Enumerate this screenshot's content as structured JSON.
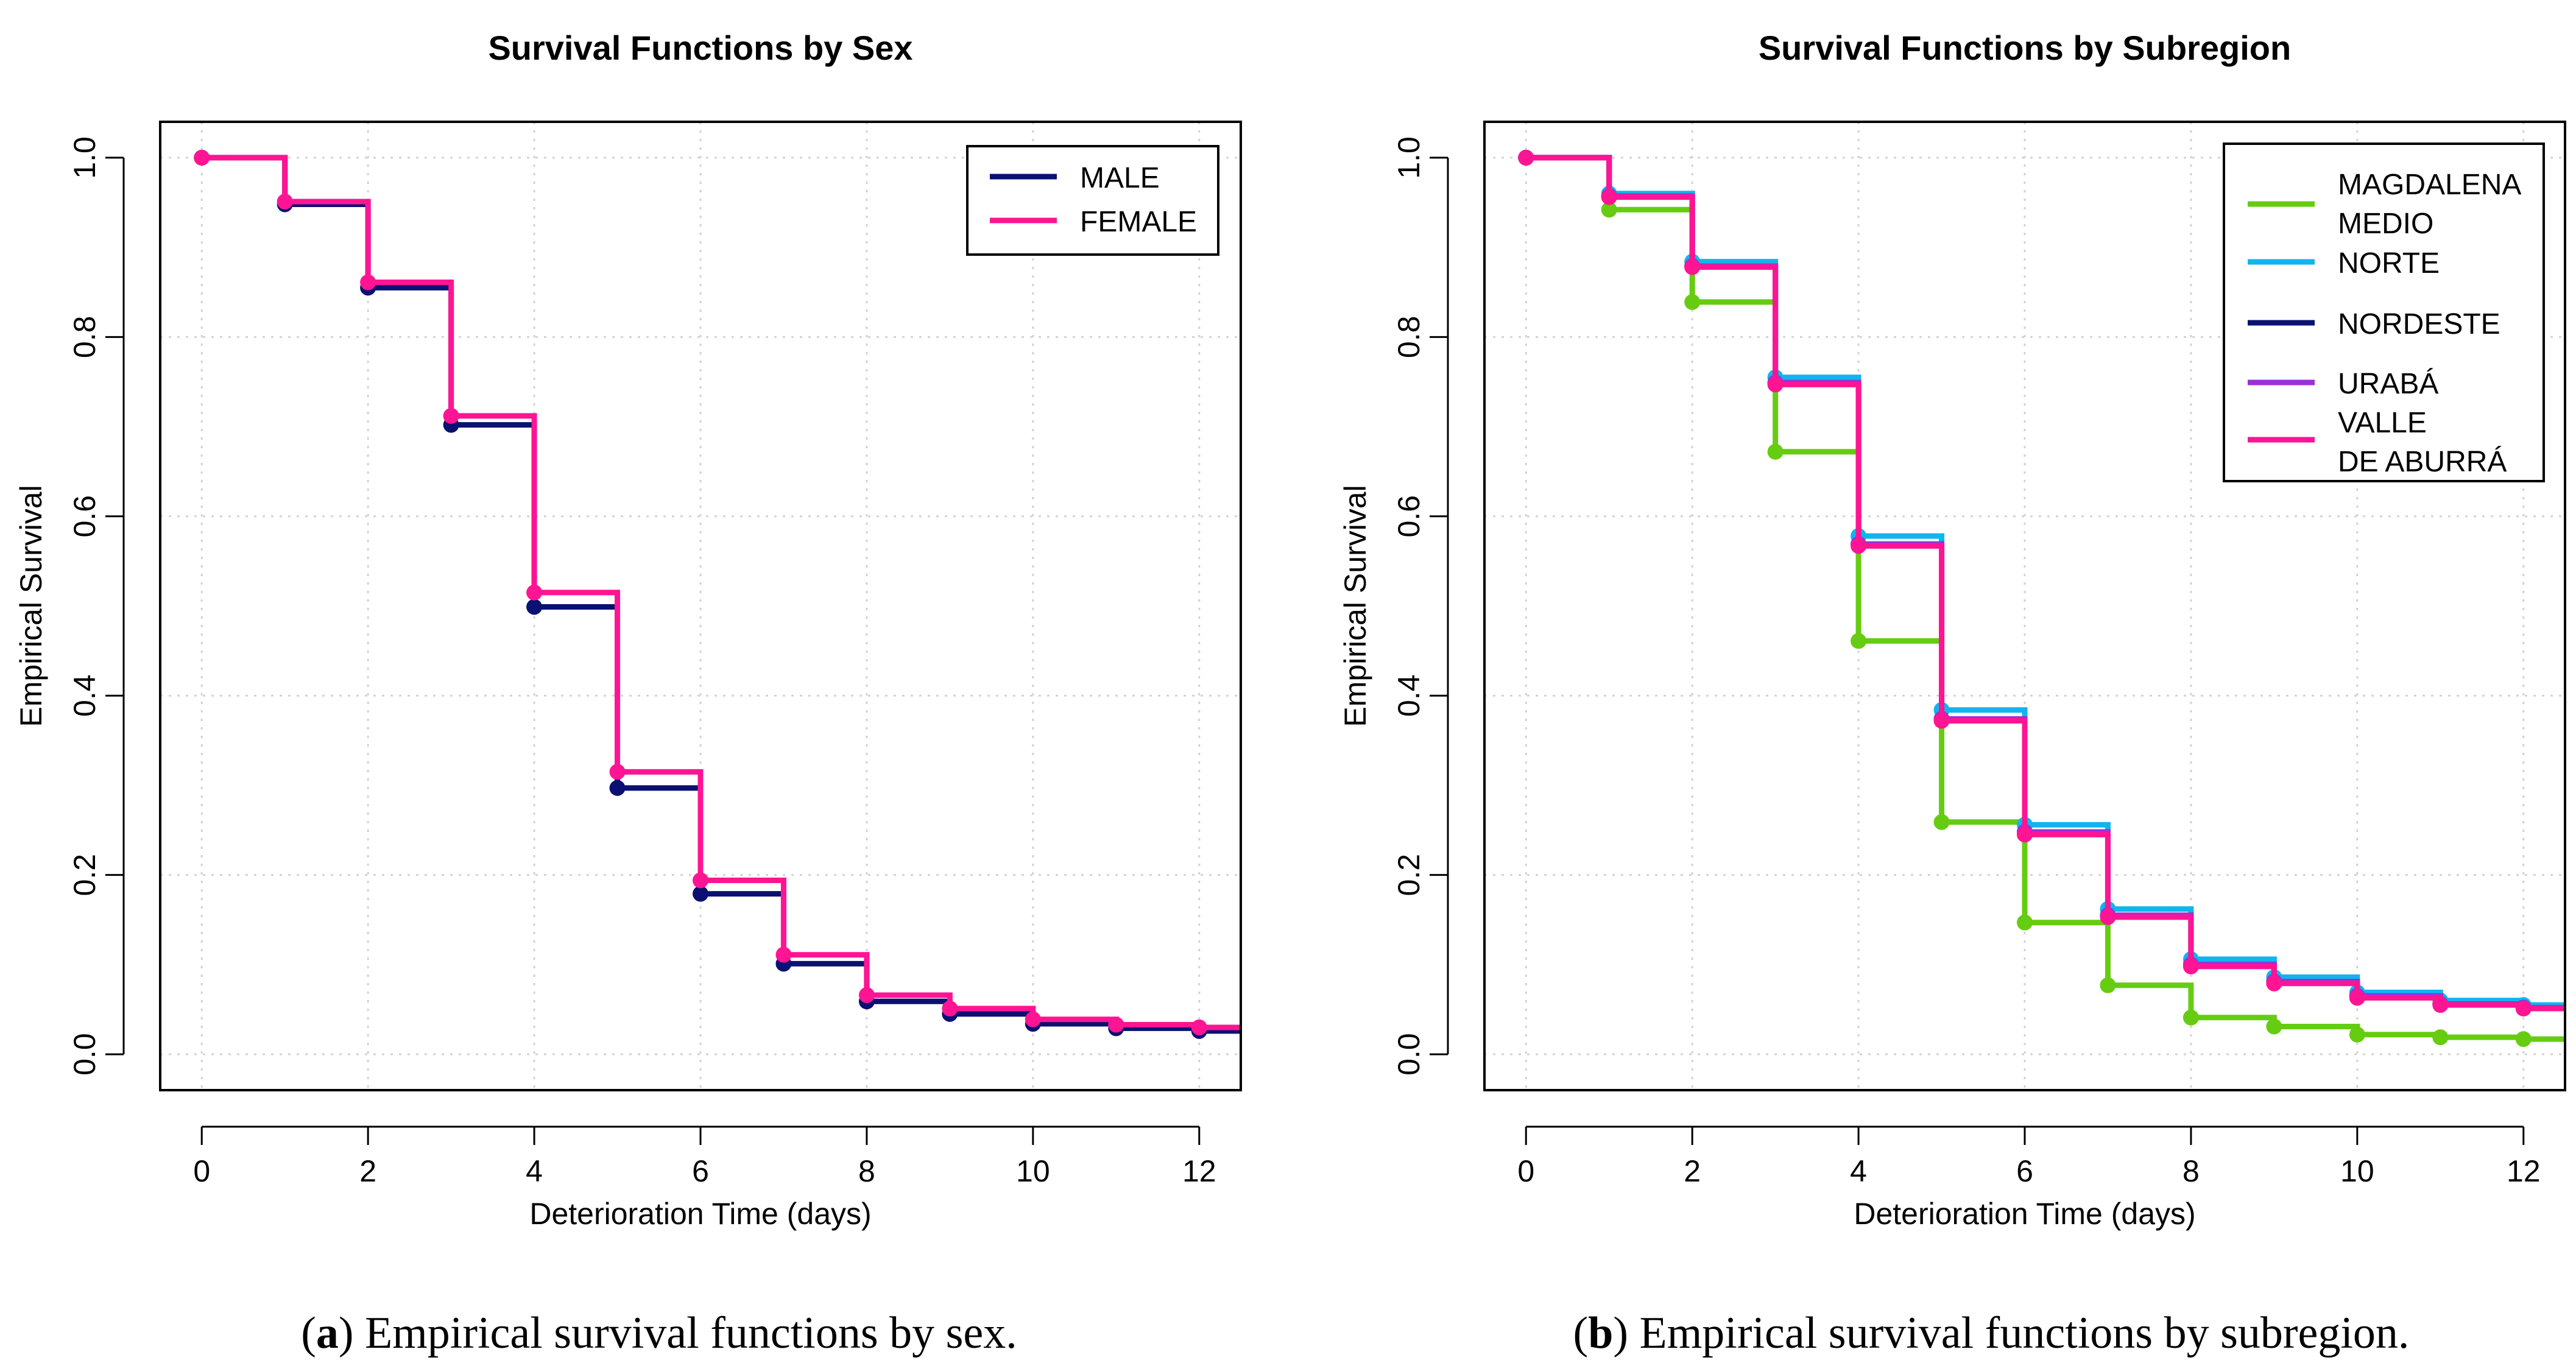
{
  "figure": {
    "captions": [
      {
        "letter": "a",
        "text": ") Empirical survival functions by sex."
      },
      {
        "letter": "b",
        "text": ") Empirical survival functions by subregion."
      }
    ]
  },
  "chart_data": [
    {
      "type": "line",
      "step": "post",
      "title": "Survival Functions by Sex",
      "xlabel": "Deterioration Time (days)",
      "ylabel": "Empirical Survival",
      "xlim": [
        -0.5,
        12.5
      ],
      "ylim": [
        -0.04,
        1.04
      ],
      "xticks": [
        0,
        2,
        4,
        6,
        8,
        10,
        12
      ],
      "xtick_labels": [
        "0",
        "2",
        "4",
        "6",
        "8",
        "10",
        "12"
      ],
      "yticks": [
        0.0,
        0.2,
        0.4,
        0.6,
        0.8,
        1.0
      ],
      "ytick_labels": [
        "0.0",
        "0.2",
        "0.4",
        "0.6",
        "0.8",
        "1.0"
      ],
      "grid": true,
      "legend_position": "top-right",
      "x": [
        0,
        1,
        2,
        3,
        4,
        5,
        6,
        7,
        8,
        9,
        10,
        11,
        12
      ],
      "series": [
        {
          "name": "MALE",
          "color": "#0a1172",
          "values": [
            1.0,
            0.948,
            0.855,
            0.702,
            0.499,
            0.297,
            0.179,
            0.101,
            0.059,
            0.045,
            0.034,
            0.029,
            0.026
          ]
        },
        {
          "name": "FEMALE",
          "color": "#ff1493",
          "values": [
            1.0,
            0.951,
            0.861,
            0.712,
            0.515,
            0.315,
            0.194,
            0.111,
            0.066,
            0.051,
            0.039,
            0.033,
            0.03
          ]
        }
      ]
    },
    {
      "type": "line",
      "step": "post",
      "title": "Survival Functions by Subregion",
      "xlabel": "Deterioration Time (days)",
      "ylabel": "Empirical Survival",
      "xlim": [
        -0.5,
        12.5
      ],
      "ylim": [
        -0.04,
        1.04
      ],
      "xticks": [
        0,
        2,
        4,
        6,
        8,
        10,
        12
      ],
      "xtick_labels": [
        "0",
        "2",
        "4",
        "6",
        "8",
        "10",
        "12"
      ],
      "yticks": [
        0.0,
        0.2,
        0.4,
        0.6,
        0.8,
        1.0
      ],
      "ytick_labels": [
        "0.0",
        "0.2",
        "0.4",
        "0.6",
        "0.8",
        "1.0"
      ],
      "grid": true,
      "legend_position": "top-right",
      "x": [
        0,
        1,
        2,
        3,
        4,
        5,
        6,
        7,
        8,
        9,
        10,
        11,
        12
      ],
      "series": [
        {
          "name": "MAGDALENA\nMEDIO",
          "color": "#66cc11",
          "values": [
            1.0,
            0.942,
            0.839,
            0.672,
            0.461,
            0.259,
            0.147,
            0.077,
            0.041,
            0.031,
            0.022,
            0.019,
            0.017
          ]
        },
        {
          "name": "NORTE",
          "color": "#11b5ee",
          "values": [
            1.0,
            0.96,
            0.884,
            0.755,
            0.578,
            0.384,
            0.256,
            0.162,
            0.106,
            0.086,
            0.069,
            0.06,
            0.055
          ]
        },
        {
          "name": "NORDESTE",
          "color": "#0a1172",
          "values": [
            1.0,
            0.957,
            0.879,
            0.749,
            0.569,
            0.374,
            0.248,
            0.155,
            0.1,
            0.081,
            0.065,
            0.056,
            0.052
          ]
        },
        {
          "name": "URABÁ",
          "color": "#9b30d9",
          "values": [
            1.0,
            0.957,
            0.879,
            0.749,
            0.569,
            0.374,
            0.248,
            0.155,
            0.1,
            0.081,
            0.065,
            0.056,
            0.052
          ]
        },
        {
          "name": "VALLE\nDE ABURRÁ",
          "color": "#ff1493",
          "values": [
            1.0,
            0.956,
            0.878,
            0.747,
            0.567,
            0.372,
            0.245,
            0.153,
            0.098,
            0.079,
            0.063,
            0.055,
            0.051
          ]
        }
      ]
    }
  ]
}
